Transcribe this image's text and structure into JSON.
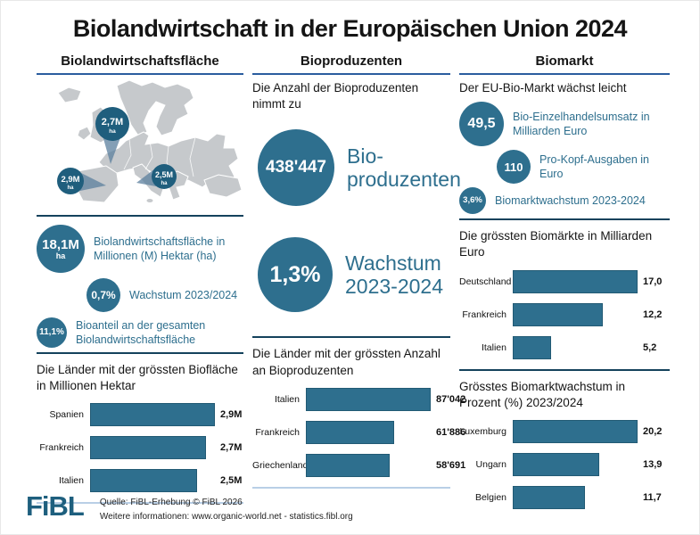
{
  "title": "Biolandwirtschaft in der Europäischen Union 2024",
  "colors": {
    "accent_teal": "#2e6f8e",
    "pin_teal": "#1f5e7d",
    "header_underline_blue": "#2a5d9f",
    "divider_dark": "#14425c",
    "divider_light": "#b9cfe6",
    "map_land_gray": "#c6c9cc"
  },
  "columns": {
    "area": {
      "header": "Biolandwirtschaftsfläche",
      "map_pins": [
        {
          "value": "2,7M",
          "unit": "ha",
          "country": "Frankreich"
        },
        {
          "value": "2,9M",
          "unit": "ha",
          "country": "Spanien"
        },
        {
          "value": "2,5M",
          "unit": "ha",
          "country": "Italien"
        }
      ],
      "stats": [
        {
          "value": "18,1M",
          "unit": "ha",
          "label": "Biolandwirtschaftsfläche in Millionen (M) Hektar (ha)"
        },
        {
          "value": "0,7%",
          "label": "Wachstum 2023/2024"
        },
        {
          "value": "11,1%",
          "label": "Bioanteil an der gesamten Biolandwirtschaftsfläche"
        }
      ]
    },
    "producers": {
      "header": "Bioproduzenten",
      "intro": "Die Anzahl der Bioproduzenten nimmt zu",
      "highlights": [
        {
          "value": "438'447",
          "label_line1": "Bio-",
          "label_line2": "produzenten"
        },
        {
          "value": "1,3%",
          "label_line1": "Wachstum",
          "label_line2": "2023-2024"
        }
      ]
    },
    "market": {
      "header": "Biomarkt",
      "intro": "Der EU-Bio-Markt wächst leicht",
      "stats": [
        {
          "value": "49,5",
          "label": "Bio-Einzelhandelsumsatz in Milliarden Euro"
        },
        {
          "value": "110",
          "label": "Pro-Kopf-Ausgaben in Euro"
        },
        {
          "value": "3,6%",
          "label": "Biomarktwachstum 2023-2024"
        }
      ]
    }
  },
  "chart_data": [
    {
      "type": "bar",
      "orientation": "horizontal",
      "title": "Die Länder mit der grössten Biofläche in Millionen Hektar",
      "categories": [
        "Spanien",
        "Frankreich",
        "Italien"
      ],
      "values": [
        2.9,
        2.7,
        2.5
      ],
      "value_labels": [
        "2,9M",
        "2,7M",
        "2,5M"
      ],
      "unit": "Millionen Hektar"
    },
    {
      "type": "bar",
      "orientation": "horizontal",
      "title": "Die Länder mit der grössten Anzahl an Bioproduzenten",
      "categories": [
        "Italien",
        "Frankreich",
        "Griechenland"
      ],
      "values": [
        87042,
        61886,
        58691
      ],
      "value_labels": [
        "87'042",
        "61'886",
        "58'691"
      ],
      "unit": "Bioproduzenten"
    },
    {
      "type": "bar",
      "orientation": "horizontal",
      "title": "Die grössten Biomärkte in Milliarden Euro",
      "categories": [
        "Deutschland",
        "Frankreich",
        "Italien"
      ],
      "values": [
        17.0,
        12.2,
        5.2
      ],
      "value_labels": [
        "17,0",
        "12,2",
        "5,2"
      ],
      "unit": "Milliarden Euro"
    },
    {
      "type": "bar",
      "orientation": "horizontal",
      "title": "Grösstes Biomarktwachstum in Prozent (%) 2023/2024",
      "categories": [
        "Luxemburg",
        "Ungarn",
        "Belgien"
      ],
      "values": [
        20.2,
        13.9,
        11.7
      ],
      "value_labels": [
        "20,2",
        "13,9",
        "11,7"
      ],
      "unit": "Prozent"
    }
  ],
  "footer": {
    "logo": "FiBL",
    "source_line1": "Quelle: FiBL-Erhebung © FiBL 2026",
    "source_line2": "Weitere informationen: www.organic-world.net - statistics.fibl.org"
  }
}
